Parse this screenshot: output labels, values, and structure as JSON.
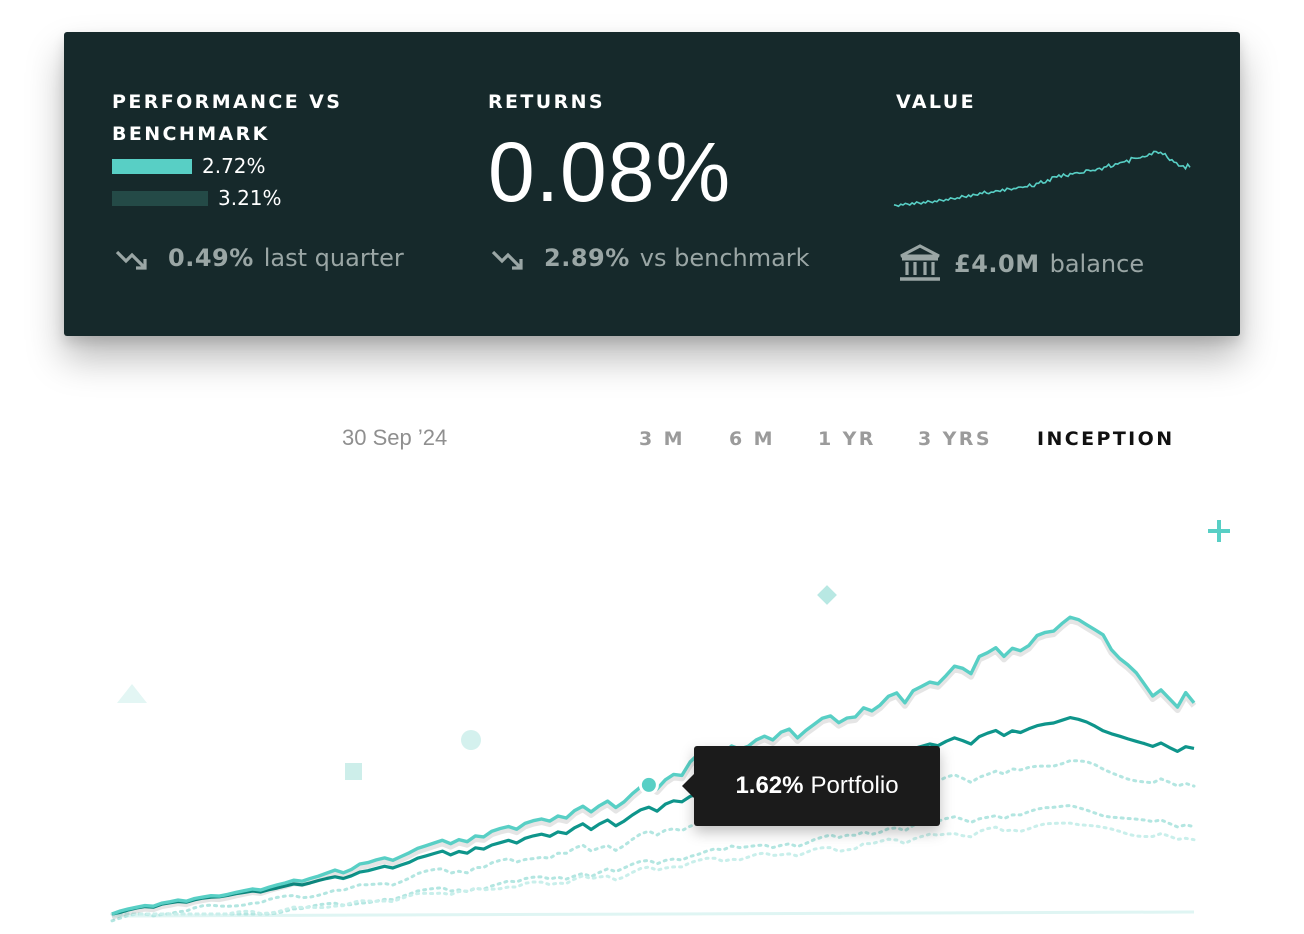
{
  "summary": {
    "performance": {
      "title": "PERFORMANCE VS\nBENCHMARK",
      "portfolio_value": "2.72%",
      "benchmark_value": "3.21%",
      "change_value": "0.49%",
      "change_label": "last quarter",
      "change_icon": "trending-down-icon"
    },
    "returns": {
      "title": "RETURNS",
      "value": "0.08%",
      "change_value": "2.89%",
      "change_label": "vs benchmark",
      "change_icon": "trending-down-icon"
    },
    "value": {
      "title": "VALUE",
      "balance_value": "£4.0M",
      "balance_label": "balance",
      "balance_icon": "bank-icon"
    }
  },
  "controls": {
    "date": "30 Sep ’24",
    "periods": [
      "3 M",
      "6 M",
      "1 YR",
      "3 YRS",
      "INCEPTION"
    ],
    "active_period": "INCEPTION"
  },
  "tooltip": {
    "value": "1.62%",
    "label": "Portfolio"
  },
  "colors": {
    "card_bg": "#16292b",
    "portfolio": "#58cfc5",
    "benchmark": "#0e958b",
    "benchmark_bar": "#244a47",
    "muted": "#9aa6a5"
  },
  "chart_data": {
    "type": "line",
    "grid": false,
    "legend": "none",
    "series": [
      {
        "values": [
          0,
          0.9,
          1.5,
          2.0,
          2.5,
          2.3,
          3.2,
          3.6,
          4.1,
          3.8,
          4.6,
          5.0,
          5.4,
          5.3,
          5.8,
          6.4,
          6.9,
          7.4,
          7.1,
          7.9,
          8.6,
          9.2,
          10.0,
          9.7,
          10.5,
          11.2,
          12.1,
          13.0,
          12.2,
          13.2,
          14.8,
          15.2,
          16.0,
          16.6,
          15.9,
          17.0,
          18.1,
          19.4,
          20.2,
          21.0,
          21.8,
          20.8,
          22.0,
          21.4,
          23.1,
          22.8,
          24.5,
          25.3,
          25.9,
          25.1,
          26.8,
          27.6,
          28.1,
          27.5,
          29.0,
          28.4,
          30.6,
          31.9,
          30.2,
          32.0,
          33.4,
          31.5,
          33.2,
          35.6,
          37.6,
          38.5,
          37.0,
          39.7,
          41.3,
          41.0,
          45.0,
          47.3,
          48.6,
          49.1,
          47.6,
          49.7,
          48.8,
          49.6,
          51.5,
          52.6,
          51.5,
          53.8,
          54.7,
          52.1,
          54.3,
          56.1,
          57.9,
          58.6,
          56.6,
          58.0,
          58.3,
          61.0,
          60.1,
          61.8,
          64.4,
          65.4,
          62.5,
          66.1,
          67.3,
          68.6,
          68.1,
          70.6,
          73.3,
          72.7,
          71.1,
          76.2,
          77.3,
          78.8,
          76.2,
          78.6,
          77.9,
          79.4,
          82.4,
          83.3,
          83.7,
          85.9,
          87.8,
          87.1,
          85.6,
          84.1,
          82.6,
          78.2,
          75.6,
          73.7,
          71.4,
          68.0,
          64.5,
          66.3,
          63.8,
          61.2,
          65.5,
          62.5
        ]
      },
      {
        "values": [
          0,
          0.5,
          1.2,
          1.8,
          2.2,
          2.0,
          2.9,
          3.3,
          3.7,
          3.5,
          4.2,
          4.7,
          5.0,
          5.1,
          5.5,
          6.0,
          6.4,
          6.8,
          6.5,
          7.2,
          7.7,
          8.3,
          8.9,
          8.6,
          9.2,
          9.9,
          10.5,
          11.0,
          10.5,
          11.3,
          12.4,
          12.8,
          13.5,
          14.1,
          13.6,
          14.5,
          15.3,
          16.5,
          17.2,
          17.9,
          18.6,
          17.5,
          18.5,
          18.0,
          19.6,
          19.2,
          20.4,
          21.1,
          21.8,
          21.0,
          22.4,
          23.1,
          23.6,
          23.0,
          24.3,
          23.8,
          25.5,
          26.7,
          25.0,
          26.6,
          27.8,
          26.1,
          27.5,
          29.3,
          30.8,
          31.6,
          30.4,
          32.5,
          33.5,
          33.2,
          34.8,
          35.5,
          36.6,
          37.2,
          36.3,
          37.9,
          37.2,
          37.9,
          38.9,
          39.6,
          38.8,
          40.1,
          40.9,
          39.4,
          40.5,
          41.8,
          42.6,
          43.3,
          42.0,
          43.2,
          43.5,
          45.6,
          44.9,
          46.2,
          48.1,
          48.5,
          46.8,
          48.9,
          49.6,
          50.3,
          49.8,
          51.1,
          52.1,
          51.3,
          50.3,
          52.5,
          53.5,
          54.3,
          52.8,
          54.2,
          53.7,
          54.8,
          55.7,
          56.2,
          56.5,
          57.3,
          58.1,
          57.6,
          56.8,
          55.6,
          54.2,
          53.3,
          52.6,
          51.8,
          51.1,
          50.4,
          49.6,
          50.6,
          49.3,
          48.1,
          49.5,
          49.0
        ]
      }
    ]
  }
}
